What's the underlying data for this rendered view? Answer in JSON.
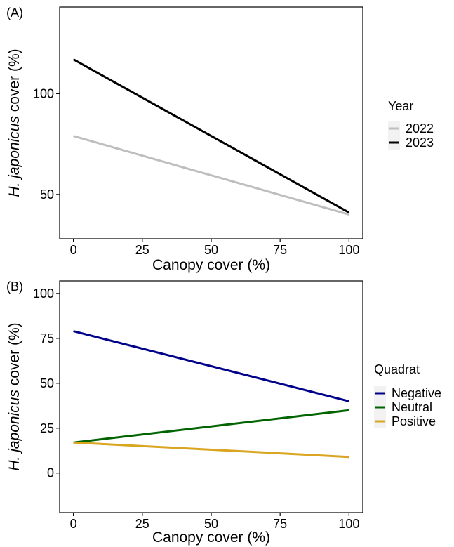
{
  "chart_data": [
    {
      "type": "line",
      "panel_label": "(A)",
      "xlabel": "Canopy cover (%)",
      "ylabel": "H. japonicus cover (%)",
      "ylabel_parts": {
        "italic": "H. japonicus",
        "rest": " cover (%)"
      },
      "xlim": [
        -5,
        105
      ],
      "ylim": [
        28,
        143
      ],
      "xticks": [
        0,
        25,
        50,
        75,
        100
      ],
      "yticks": [
        50,
        100
      ],
      "grid": false,
      "legend": {
        "title": "Year",
        "position": "right"
      },
      "series": [
        {
          "name": "2022",
          "color": "#bebebe",
          "x": [
            0,
            100
          ],
          "y": [
            79,
            40
          ]
        },
        {
          "name": "2023",
          "color": "#000000",
          "x": [
            0,
            100
          ],
          "y": [
            117,
            41
          ]
        }
      ]
    },
    {
      "type": "line",
      "panel_label": "(B)",
      "xlabel": "Canopy cover (%)",
      "ylabel": "H. japonicus cover (%)",
      "ylabel_parts": {
        "italic": "H. japonicus",
        "rest": " cover (%)"
      },
      "xlim": [
        -5,
        105
      ],
      "ylim": [
        -22,
        107
      ],
      "xticks": [
        0,
        25,
        50,
        75,
        100
      ],
      "yticks": [
        0,
        25,
        50,
        75,
        100
      ],
      "grid": false,
      "legend": {
        "title": "Quadrat",
        "position": "right"
      },
      "series": [
        {
          "name": "Negative",
          "color": "#00008b",
          "x": [
            0,
            100
          ],
          "y": [
            79,
            40
          ]
        },
        {
          "name": "Neutral",
          "color": "#006400",
          "x": [
            0,
            100
          ],
          "y": [
            17,
            35
          ]
        },
        {
          "name": "Positive",
          "color": "#daa520",
          "x": [
            0,
            100
          ],
          "y": [
            17,
            9
          ]
        }
      ]
    }
  ]
}
